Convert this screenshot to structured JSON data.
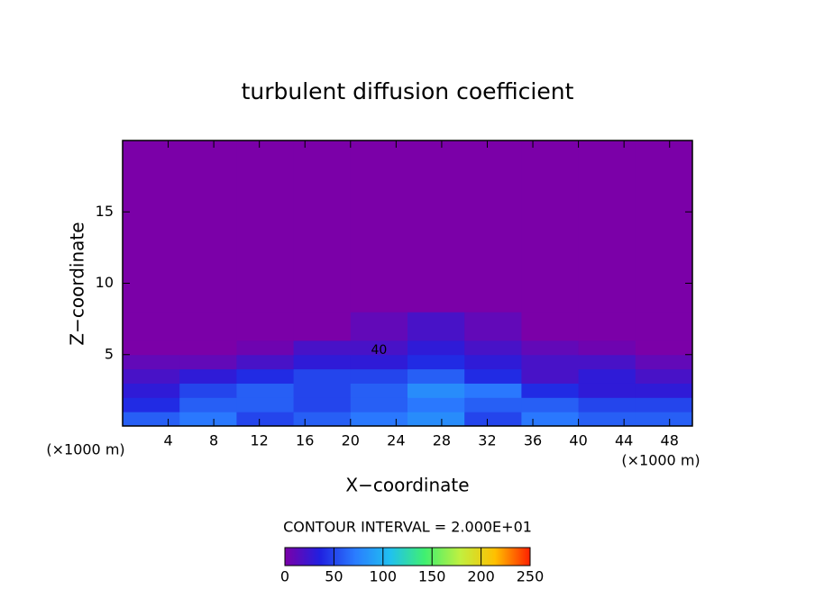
{
  "chart_data": {
    "type": "contour",
    "title": "turbulent diffusion coefficient",
    "xlabel": "X−coordinate",
    "ylabel": "Z−coordinate",
    "xunit": "(×1000 m)",
    "yunit": "(×1000 m)",
    "x_edges": [
      0,
      5,
      10,
      15,
      20,
      25,
      30,
      35,
      40,
      45,
      50
    ],
    "y_edges": [
      0,
      1,
      2,
      3,
      4,
      5,
      6,
      8,
      20
    ],
    "values": [
      [
        60,
        70,
        50,
        60,
        70,
        80,
        50,
        70,
        60,
        60
      ],
      [
        40,
        60,
        60,
        50,
        60,
        70,
        60,
        60,
        50,
        50
      ],
      [
        30,
        50,
        60,
        50,
        60,
        80,
        70,
        40,
        30,
        30
      ],
      [
        20,
        30,
        40,
        50,
        50,
        60,
        40,
        20,
        30,
        20
      ],
      [
        10,
        10,
        20,
        30,
        30,
        40,
        30,
        20,
        20,
        10
      ],
      [
        0,
        0,
        5,
        20,
        20,
        30,
        20,
        10,
        5,
        0
      ],
      [
        0,
        0,
        0,
        0,
        10,
        20,
        10,
        0,
        0,
        0
      ],
      [
        0,
        0,
        0,
        0,
        0,
        0,
        0,
        0,
        0,
        0
      ]
    ],
    "contour_labels": [
      {
        "value": 40,
        "x": 22.5,
        "y": 5.3
      }
    ],
    "xlim": [
      0,
      50
    ],
    "ylim": [
      0,
      20
    ],
    "xticks": [
      4,
      8,
      12,
      16,
      20,
      24,
      28,
      32,
      36,
      40,
      44,
      48
    ],
    "yticks": [
      5,
      10,
      15
    ],
    "contour_interval_text": "CONTOUR INTERVAL = 2.000E+01",
    "clim": [
      0,
      250
    ],
    "cticks": [
      0,
      50,
      100,
      150,
      200,
      250
    ],
    "colors": [
      "#7b00a8",
      "#2020e0",
      "#2a7cff",
      "#20c0f0",
      "#40f070",
      "#c0f040",
      "#ffc000",
      "#ff2000"
    ]
  }
}
